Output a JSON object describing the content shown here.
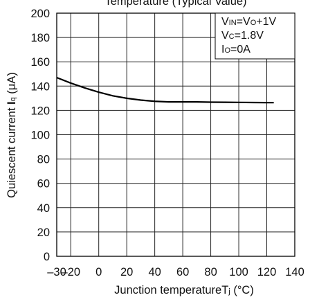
{
  "chart_data": {
    "type": "line",
    "title": "Temperature (Typical Value)",
    "xlabel": {
      "main": "Junction temperature",
      "sym": "T",
      "sub": "j",
      "unit": " (°C)"
    },
    "ylabel": {
      "main": "Quiescent current ",
      "sym": "I",
      "sub": "q",
      "unit": " (μA)"
    },
    "xlim": [
      -30,
      140
    ],
    "ylim": [
      0,
      200
    ],
    "xticks": [
      -30,
      -20,
      0,
      20,
      40,
      60,
      80,
      100,
      120,
      140
    ],
    "xtick_labels": [
      "–30",
      "–20",
      "0",
      "20",
      "40",
      "60",
      "80",
      "100",
      "120",
      "140"
    ],
    "yticks": [
      0,
      20,
      40,
      60,
      80,
      100,
      120,
      140,
      160,
      180,
      200
    ],
    "grid": true,
    "annotations": [
      {
        "sym": "V",
        "sub": "IN",
        "eq": "=",
        "sym2": "V",
        "sub2": "O",
        "rest": "+1V"
      },
      {
        "sym": "V",
        "sub": "C",
        "eq": "=",
        "rest": "1.8V"
      },
      {
        "sym": "I",
        "sub": "O",
        "eq": "=",
        "rest": "0A"
      }
    ],
    "series": [
      {
        "x": [
          -30,
          -20,
          -10,
          0,
          10,
          20,
          30,
          40,
          50,
          60,
          70,
          80,
          90,
          100,
          110,
          120,
          125
        ],
        "y": [
          147,
          142.5,
          138.5,
          135,
          132,
          130,
          128.5,
          127.5,
          127,
          127,
          127,
          126.8,
          126.7,
          126.6,
          126.5,
          126.4,
          126.4
        ]
      }
    ]
  }
}
